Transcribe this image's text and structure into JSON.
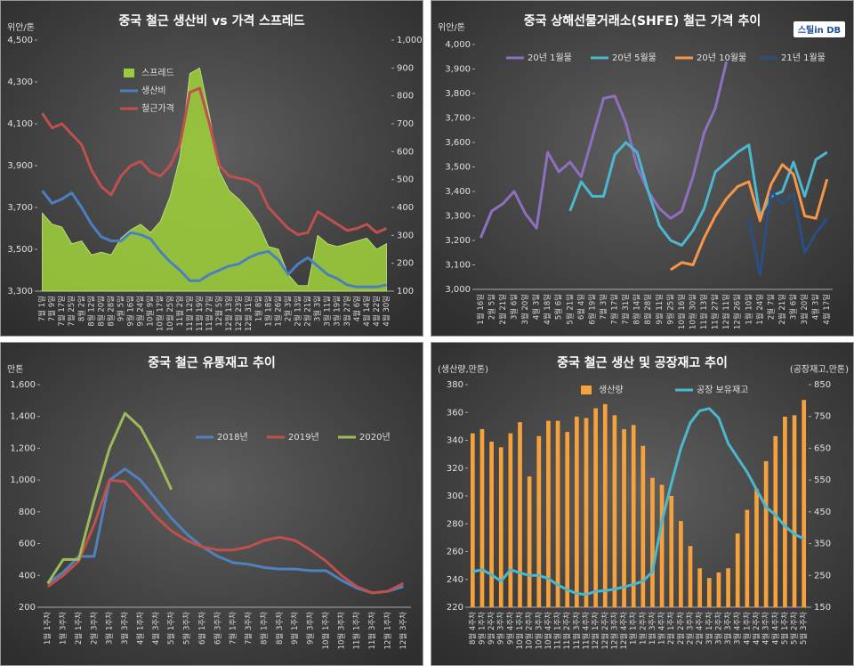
{
  "chart_data": [
    {
      "type": "combo",
      "title": "중국 철근 생산비 vs 가격 스프레드",
      "ylabel": "위안/톤",
      "categories": [
        "7월 1일",
        "7월 9일",
        "7월 17일",
        "7월 25일",
        "8월 2일",
        "8월 12일",
        "8월 20일",
        "8월 28일",
        "9월 5일",
        "9월 16일",
        "9월 24일",
        "10월 9일",
        "10월 17일",
        "10월 25일",
        "11월 2일",
        "11월 12일",
        "11월 19일",
        "11월 27일",
        "12월 5일",
        "12월 13일",
        "12월 23일",
        "12월 31일",
        "1월 8일",
        "1월 18일",
        "1월 26일",
        "2월 3일",
        "2월 13일",
        "2월 21일",
        "3월 3일",
        "3월 11일",
        "3월 19일",
        "3월 27일",
        "4월 6일",
        "4월 14일",
        "4월 22일",
        "4월 30일"
      ],
      "series": [
        {
          "name": "스프레드",
          "type": "area",
          "axis": "y2",
          "color": "#9ccc3c",
          "values": [
            380,
            340,
            330,
            270,
            280,
            230,
            240,
            230,
            290,
            320,
            340,
            310,
            350,
            440,
            580,
            880,
            900,
            730,
            530,
            460,
            430,
            390,
            340,
            260,
            250,
            160,
            120,
            120,
            300,
            270,
            260,
            270,
            280,
            290,
            250,
            270
          ]
        },
        {
          "name": "생산비",
          "type": "line",
          "color": "#4a7fc1",
          "values": [
            3780,
            3720,
            3740,
            3770,
            3700,
            3620,
            3560,
            3540,
            3540,
            3580,
            3570,
            3550,
            3490,
            3440,
            3400,
            3350,
            3350,
            3380,
            3400,
            3420,
            3430,
            3460,
            3480,
            3490,
            3450,
            3380,
            3430,
            3460,
            3420,
            3380,
            3360,
            3330,
            3320,
            3320,
            3320,
            3330
          ]
        },
        {
          "name": "철근가격",
          "type": "line",
          "color": "#c0504d",
          "values": [
            4150,
            4080,
            4100,
            4050,
            4000,
            3880,
            3800,
            3760,
            3850,
            3900,
            3920,
            3870,
            3850,
            3900,
            4000,
            4250,
            4270,
            4100,
            3900,
            3850,
            3840,
            3830,
            3800,
            3700,
            3650,
            3600,
            3570,
            3580,
            3680,
            3650,
            3620,
            3590,
            3600,
            3620,
            3580,
            3600
          ]
        }
      ],
      "ylim": [
        3300,
        4500
      ],
      "yticks": [
        {
          "value": 3300,
          "label": "3,300"
        },
        {
          "value": 3500,
          "label": "3,500"
        },
        {
          "value": 3700,
          "label": "3,700"
        },
        {
          "value": 3900,
          "label": "3,900"
        },
        {
          "value": 4100,
          "label": "4,100"
        },
        {
          "value": 4300,
          "label": "4,300"
        },
        {
          "value": 4500,
          "label": "4,500"
        }
      ],
      "y2lim": [
        100,
        1000
      ],
      "y2ticks": [
        100,
        200,
        300,
        400,
        500,
        600,
        700,
        800,
        900,
        {
          "value": 1000,
          "label": "1,000"
        }
      ],
      "legend": "upper left",
      "grid": false
    },
    {
      "type": "line",
      "title": "중국 상해선물거래소(SHFE) 철근 가격 추이",
      "ylabel": "위안/톤",
      "logo": "스틸in DB",
      "categories": [
        "1월 16일",
        "2월 5일",
        "2월 21일",
        "3월 6일",
        "3월 20일",
        "4월 3일",
        "4월 18일",
        "5월 6일",
        "5월 21일",
        "6월 4일",
        "6월 19일",
        "7월 3일",
        "7월 17일",
        "7월 31일",
        "8월 14일",
        "8월 28일",
        "9월 11일",
        "9월 25일",
        "10월 16일",
        "10월 30일",
        "11월 13일",
        "11월 27일",
        "12월 11일",
        "12월 26일",
        "1월 10일",
        "1월 24일",
        "2월 7일",
        "2월 21일",
        "3월 6일",
        "3월 20일",
        "4월 3일",
        "4월 17일"
      ],
      "series": [
        {
          "name": "20년 1월물",
          "color": "#8f6fc0",
          "values": [
            3210,
            3320,
            3350,
            3400,
            3310,
            3250,
            3560,
            3480,
            3520,
            3460,
            3620,
            3780,
            3790,
            3680,
            3500,
            3400,
            3330,
            3290,
            3320,
            3460,
            3640,
            3740,
            3930,
            null,
            null,
            null,
            null,
            null,
            null,
            null,
            null,
            null
          ]
        },
        {
          "name": "20년 5월물",
          "color": "#4bb8d0",
          "values": [
            null,
            null,
            null,
            null,
            null,
            null,
            null,
            null,
            3320,
            3440,
            3380,
            3380,
            3550,
            3600,
            3560,
            3400,
            3260,
            3200,
            3180,
            3240,
            3330,
            3480,
            3520,
            3560,
            3590,
            3300,
            3380,
            3400,
            3520,
            3380,
            3530,
            3560
          ]
        },
        {
          "name": "20년 10월물",
          "color": "#f79646",
          "values": [
            null,
            null,
            null,
            null,
            null,
            null,
            null,
            null,
            null,
            null,
            null,
            null,
            null,
            null,
            null,
            null,
            null,
            3080,
            3110,
            3100,
            3210,
            3300,
            3370,
            3420,
            3440,
            3280,
            3430,
            3510,
            3470,
            3300,
            3290,
            3450
          ]
        },
        {
          "name": "21년 1월물",
          "color": "#2a4f82",
          "values": [
            null,
            null,
            null,
            null,
            null,
            null,
            null,
            null,
            null,
            null,
            null,
            null,
            null,
            null,
            null,
            null,
            null,
            null,
            null,
            null,
            null,
            null,
            null,
            null,
            3290,
            3060,
            3400,
            3350,
            3390,
            3150,
            3230,
            3290
          ]
        }
      ],
      "ylim": [
        3000,
        4000
      ],
      "yticks": [
        {
          "value": 3000,
          "label": "3,000"
        },
        {
          "value": 3100,
          "label": "3,100"
        },
        {
          "value": 3200,
          "label": "3,200"
        },
        {
          "value": 3300,
          "label": "3,300"
        },
        {
          "value": 3400,
          "label": "3,400"
        },
        {
          "value": 3500,
          "label": "3,500"
        },
        {
          "value": 3600,
          "label": "3,600"
        },
        {
          "value": 3700,
          "label": "3,700"
        },
        {
          "value": 3800,
          "label": "3,800"
        },
        {
          "value": 3900,
          "label": "3,900"
        },
        {
          "value": 4000,
          "label": "4,000"
        }
      ],
      "legend": "top",
      "grid": false
    },
    {
      "type": "line",
      "title": "중국 철근 유통재고 추이",
      "ylabel": "만톤",
      "categories": [
        "1월 1주차",
        "1월 3주차",
        "2월 1주차",
        "2월 3주차",
        "3월 1주차",
        "3월 3주차",
        "4월 1주차",
        "4월 3주차",
        "5월 1주차",
        "5월 3주차",
        "6월 1주차",
        "6월 3주차",
        "7월 1주차",
        "7월 3주차",
        "8월 1주차",
        "8월 3주차",
        "9월 1주차",
        "9월 3주차",
        "10월 1주차",
        "10월 3주차",
        "11월 1주차",
        "11월 3주차",
        "12월 1주차",
        "12월 3주차"
      ],
      "series": [
        {
          "name": "2018년",
          "color": "#4f81bd",
          "values": [
            350,
            420,
            520,
            520,
            1000,
            1070,
            1000,
            880,
            760,
            660,
            580,
            520,
            480,
            470,
            450,
            440,
            440,
            430,
            430,
            370,
            320,
            290,
            300,
            330
          ]
        },
        {
          "name": "2019년",
          "color": "#c0504d",
          "values": [
            330,
            400,
            490,
            720,
            1000,
            990,
            880,
            770,
            680,
            620,
            580,
            560,
            560,
            580,
            620,
            640,
            620,
            560,
            490,
            400,
            330,
            290,
            300,
            350
          ]
        },
        {
          "name": "2020년",
          "color": "#9bbb59",
          "values": [
            350,
            500,
            500,
            870,
            1200,
            1420,
            1330,
            1150,
            940,
            null,
            null,
            null,
            null,
            null,
            null,
            null,
            null,
            null,
            null,
            null,
            null,
            null,
            null,
            null
          ]
        }
      ],
      "ylim": [
        200,
        1600
      ],
      "yticks": [
        200,
        400,
        600,
        800,
        {
          "value": 1000,
          "label": "1,000"
        },
        {
          "value": 1200,
          "label": "1,200"
        },
        {
          "value": 1400,
          "label": "1,400"
        },
        {
          "value": 1600,
          "label": "1,600"
        }
      ],
      "legend": "upper right",
      "grid": false
    },
    {
      "type": "combo",
      "title": "중국 철근 생산 및 공장재고 추이",
      "ylabel": "(생산량,만톤)",
      "y2label": "(공장재고,만톤)",
      "categories": [
        "8월 4주차",
        "9월 1주차",
        "9월 2주차",
        "9월 3주차",
        "9월 4주차",
        "10월 1주차",
        "10월 2주차",
        "10월 3주차",
        "10월 4주차",
        "11월 1주차",
        "11월 2주차",
        "11월 3주차",
        "11월 4주차",
        "12월 1주차",
        "12월 2주차",
        "12월 3주차",
        "12월 4주차",
        "1월 1주차",
        "1월 2주차",
        "1월 3주차",
        "1월 4주차",
        "2월 1주차",
        "2월 2주차",
        "2월 3주차",
        "2월 4주차",
        "3월 1주차",
        "3월 2주차",
        "3월 3주차",
        "3월 4주차",
        "4월 1주차",
        "4월 2주차",
        "4월 3주차",
        "4월 4주차",
        "5월 1주차",
        "5월 2주차",
        "5월 3주차"
      ],
      "series": [
        {
          "name": "생산량",
          "type": "bar",
          "color": "#f7a13d",
          "values": [
            345,
            348,
            339,
            335,
            345,
            353,
            314,
            343,
            354,
            354,
            346,
            357,
            356,
            363,
            366,
            358,
            348,
            351,
            336,
            313,
            308,
            300,
            282,
            264,
            248,
            241,
            245,
            248,
            273,
            290,
            305,
            325,
            343,
            357,
            358,
            369
          ]
        },
        {
          "name": "공장 보유재고",
          "type": "line",
          "axis": "y2",
          "color": "#4bb8d0",
          "values": [
            262,
            268,
            252,
            232,
            268,
            258,
            250,
            250,
            240,
            220,
            205,
            193,
            190,
            200,
            202,
            207,
            214,
            222,
            232,
            262,
            420,
            540,
            650,
            730,
            768,
            775,
            745,
            665,
            620,
            575,
            520,
            465,
            440,
            405,
            380,
            365
          ]
        }
      ],
      "ylim": [
        220,
        380
      ],
      "yticks": [
        220,
        240,
        260,
        280,
        300,
        320,
        340,
        360,
        380
      ],
      "y2lim": [
        150,
        850
      ],
      "y2ticks": [
        150,
        250,
        350,
        450,
        550,
        650,
        750,
        850
      ],
      "legend": "top",
      "grid": false
    }
  ]
}
